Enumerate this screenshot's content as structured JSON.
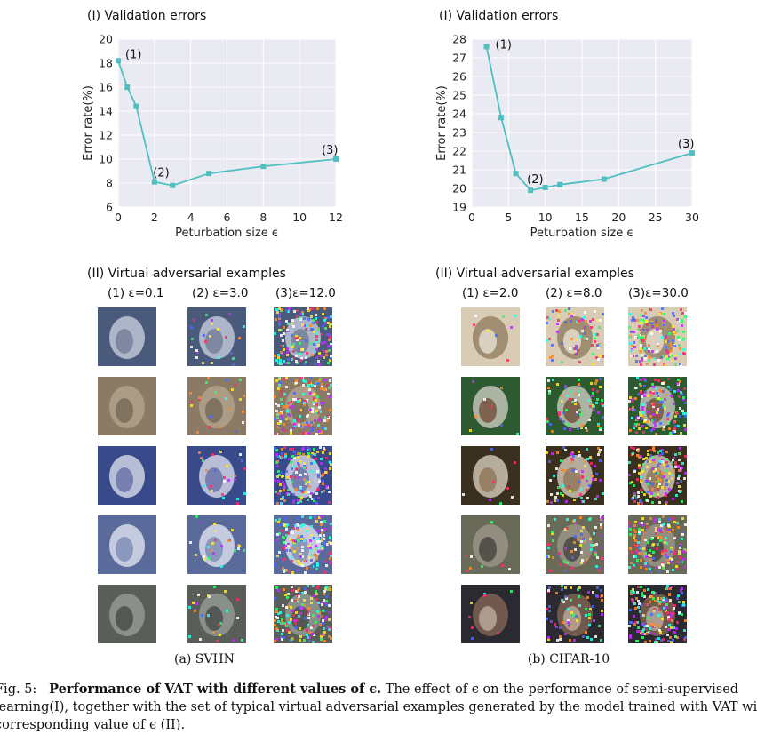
{
  "left": {
    "title": "(I) Validation errors",
    "examples_title": "(II) Virtual adversarial examples",
    "col_labels": [
      "(1) ε=0.1",
      "(2) ε=3.0",
      "(3)ε=12.0"
    ],
    "sub_caption": "(a) SVHN"
  },
  "right": {
    "title": "(I) Validation errors",
    "examples_title": "(II) Virtual adversarial examples",
    "col_labels": [
      "(1) ε=2.0",
      "(2) ε=8.0",
      "(3)ε=30.0"
    ],
    "sub_caption": "(b) CIFAR-10"
  },
  "chart_data": [
    {
      "type": "line",
      "x": [
        0,
        0.5,
        1,
        2,
        3,
        5,
        8,
        12
      ],
      "series": [
        {
          "values": [
            18.2,
            16.0,
            14.4,
            8.1,
            7.8,
            8.8,
            9.4,
            10.0
          ]
        }
      ],
      "xlabel": "Peturbation size ϵ",
      "ylabel": "Error rate(%)",
      "xlim": [
        0,
        12
      ],
      "ylim": [
        6,
        20
      ],
      "xticks": [
        "0",
        "2",
        "4",
        "6",
        "8",
        "10",
        "12"
      ],
      "yticks": [
        "6",
        "8",
        "10",
        "12",
        "14",
        "16",
        "18",
        "20"
      ],
      "annotations": [
        "(1)",
        "(2)",
        "(3)"
      ],
      "color": "#4fbfbf",
      "grid": true
    },
    {
      "type": "line",
      "x": [
        2,
        4,
        6,
        8,
        10,
        12,
        18,
        30
      ],
      "series": [
        {
          "values": [
            27.6,
            23.8,
            20.8,
            19.9,
            20.05,
            20.2,
            20.5,
            21.9
          ]
        }
      ],
      "xlabel": "Peturbation size ϵ",
      "ylabel": "Error rate(%)",
      "xlim": [
        0,
        30
      ],
      "ylim": [
        19,
        28
      ],
      "xticks": [
        "0",
        "5",
        "10",
        "15",
        "20",
        "25",
        "30"
      ],
      "yticks": [
        "19",
        "20",
        "21",
        "22",
        "23",
        "24",
        "25",
        "26",
        "27",
        "28"
      ],
      "annotations": [
        "(1)",
        "(2)",
        "(3)"
      ],
      "color": "#4fbfbf",
      "grid": true
    }
  ],
  "caption": {
    "prefix": "Fig. 5:",
    "bold": "Performance of VAT with different values of ϵ.",
    "line1_rest": " The effect of ϵ on the performance of semi-supervised",
    "line2": "learning(I), together with the set of typical virtual adversarial examples generated by the model trained with VAT with",
    "line3": "corresponding value of ϵ (II)."
  },
  "colors": {
    "plot_bg": "#eaeaf2",
    "line": "#4fbfbf"
  }
}
